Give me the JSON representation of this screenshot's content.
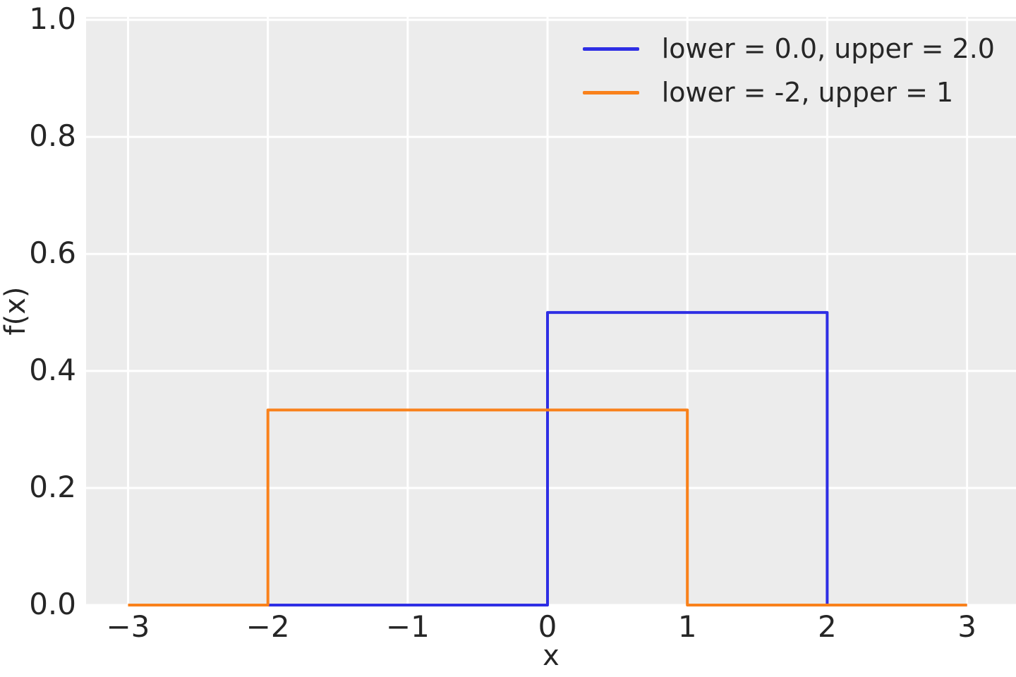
{
  "chart_data": {
    "type": "line",
    "subtype": "step-pdf",
    "title": "",
    "xlabel": "x",
    "ylabel": "f(x)",
    "xlim": [
      -3.3,
      3.35
    ],
    "ylim": [
      0,
      1.005
    ],
    "grid": true,
    "plot_background": "#ececec",
    "grid_color": "#ffffff",
    "text_color": "#262626",
    "legend_position": "upper right",
    "xticks": [
      {
        "value": -3,
        "label": "−3"
      },
      {
        "value": -2,
        "label": "−2"
      },
      {
        "value": -1,
        "label": "−1"
      },
      {
        "value": 0,
        "label": "0"
      },
      {
        "value": 1,
        "label": "1"
      },
      {
        "value": 2,
        "label": "2"
      },
      {
        "value": 3,
        "label": "3"
      }
    ],
    "yticks": [
      {
        "value": 0.0,
        "label": "0.0"
      },
      {
        "value": 0.2,
        "label": "0.2"
      },
      {
        "value": 0.4,
        "label": "0.4"
      },
      {
        "value": 0.6,
        "label": "0.6"
      },
      {
        "value": 0.8,
        "label": "0.8"
      },
      {
        "value": 1.0,
        "label": "1.0"
      }
    ],
    "series": [
      {
        "name": "lower = 0.0, upper = 2.0",
        "color": "#2e2ee4",
        "lower": 0.0,
        "upper": 2.0,
        "density": 0.5,
        "points": [
          [
            -3,
            0
          ],
          [
            0,
            0
          ],
          [
            0,
            0.5
          ],
          [
            2,
            0.5
          ],
          [
            2,
            0
          ],
          [
            3,
            0
          ]
        ]
      },
      {
        "name": "lower = -2, upper = 1",
        "color": "#f9811b",
        "lower": -2,
        "upper": 1,
        "density": 0.3333,
        "points": [
          [
            -3,
            0
          ],
          [
            -2,
            0
          ],
          [
            -2,
            0.3333
          ],
          [
            1,
            0.3333
          ],
          [
            1,
            0
          ],
          [
            3,
            0
          ]
        ]
      }
    ]
  }
}
